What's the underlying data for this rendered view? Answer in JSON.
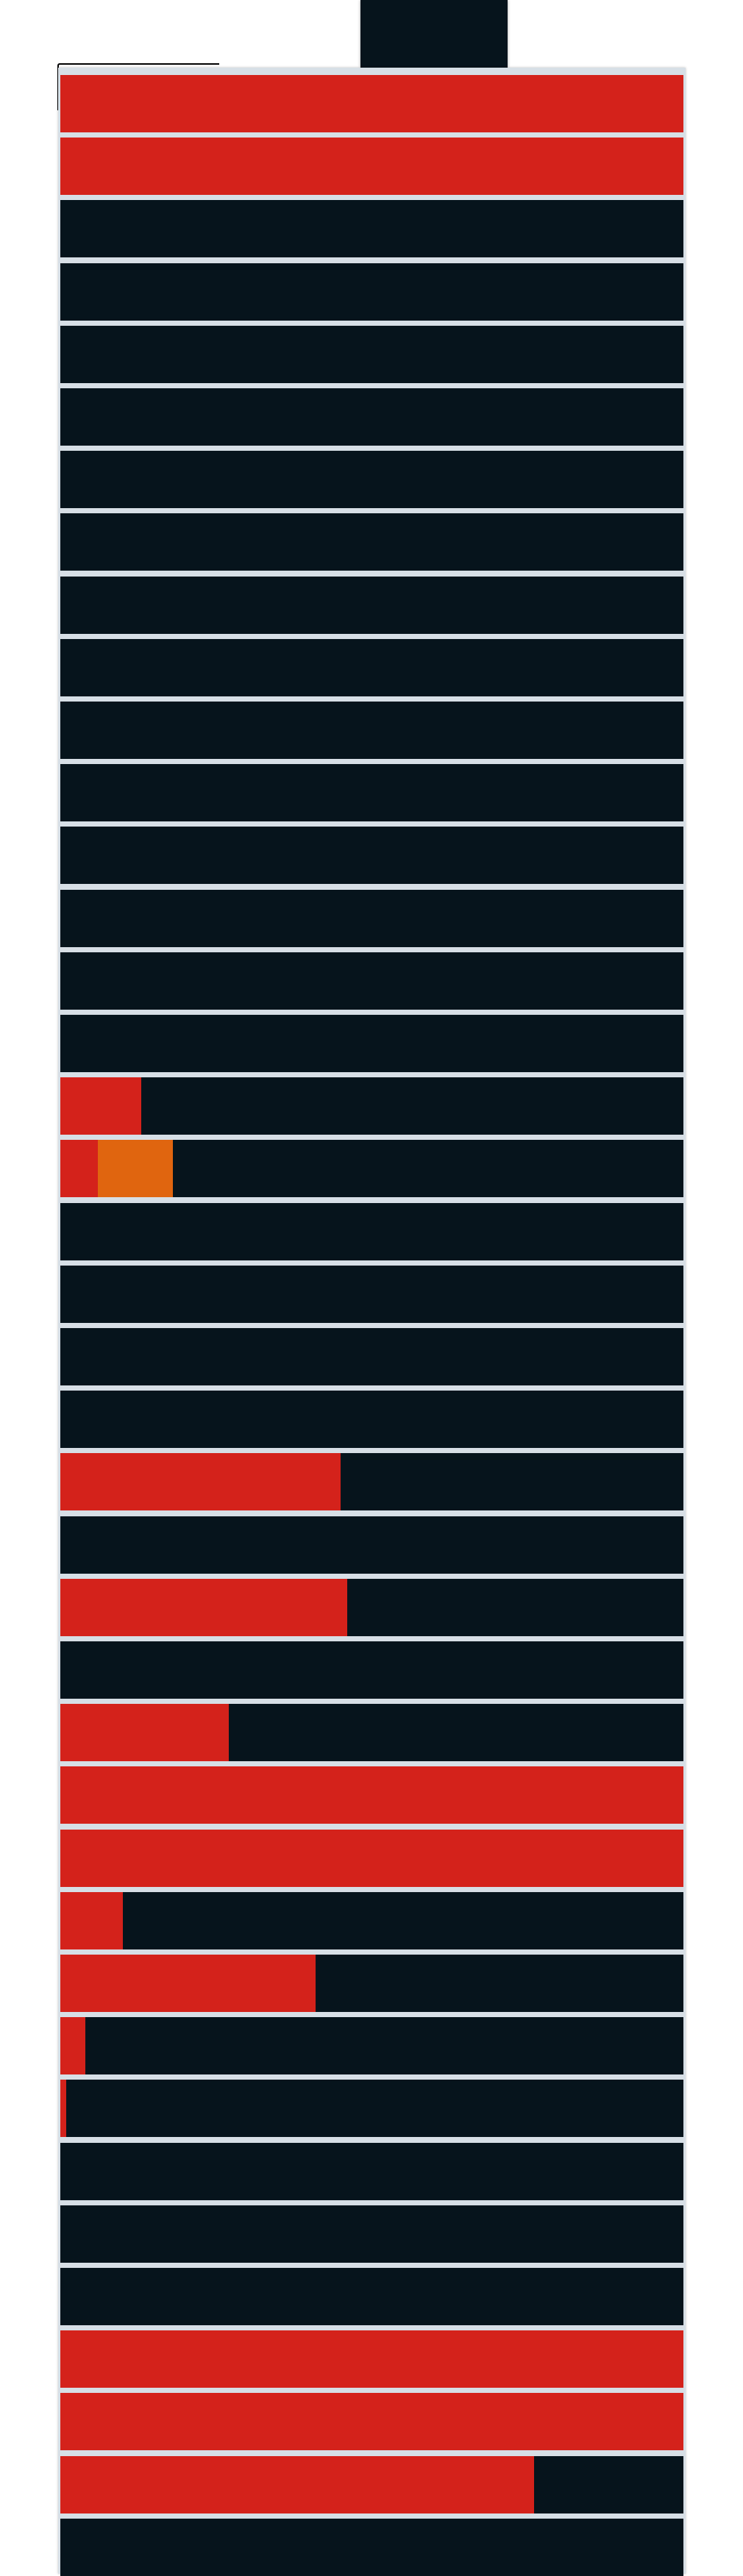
{
  "colors": {
    "background": "#ffffff",
    "track": "#06141c",
    "separator": "#d7dfe6",
    "red": "#d4221b",
    "orange": "#e0650f"
  },
  "rows": [
    {
      "segments": [
        {
          "color": "red",
          "fraction": 1.0
        }
      ]
    },
    {
      "segments": [
        {
          "color": "red",
          "fraction": 1.0
        }
      ]
    },
    {
      "segments": []
    },
    {
      "segments": []
    },
    {
      "segments": []
    },
    {
      "segments": []
    },
    {
      "segments": []
    },
    {
      "segments": []
    },
    {
      "segments": []
    },
    {
      "segments": []
    },
    {
      "segments": []
    },
    {
      "segments": []
    },
    {
      "segments": []
    },
    {
      "segments": []
    },
    {
      "segments": []
    },
    {
      "segments": []
    },
    {
      "segments": [
        {
          "color": "red",
          "fraction": 0.13
        }
      ]
    },
    {
      "segments": [
        {
          "color": "red",
          "fraction": 0.06
        },
        {
          "color": "orange",
          "fraction": 0.12
        }
      ]
    },
    {
      "segments": []
    },
    {
      "segments": []
    },
    {
      "segments": []
    },
    {
      "segments": []
    },
    {
      "segments": [
        {
          "color": "red",
          "fraction": 0.45
        }
      ]
    },
    {
      "segments": []
    },
    {
      "segments": [
        {
          "color": "red",
          "fraction": 0.46
        }
      ]
    },
    {
      "segments": []
    },
    {
      "segments": [
        {
          "color": "red",
          "fraction": 0.27
        }
      ]
    },
    {
      "segments": [
        {
          "color": "red",
          "fraction": 1.0
        }
      ]
    },
    {
      "segments": [
        {
          "color": "red",
          "fraction": 1.0
        }
      ]
    },
    {
      "segments": [
        {
          "color": "red",
          "fraction": 0.1
        }
      ]
    },
    {
      "segments": [
        {
          "color": "red",
          "fraction": 0.41
        }
      ]
    },
    {
      "segments": [
        {
          "color": "red",
          "fraction": 0.04
        }
      ]
    },
    {
      "segments": [
        {
          "color": "red",
          "fraction": 0.01
        }
      ]
    },
    {
      "segments": []
    },
    {
      "segments": []
    },
    {
      "segments": []
    },
    {
      "segments": [
        {
          "color": "red",
          "fraction": 1.0
        }
      ]
    },
    {
      "segments": [
        {
          "color": "red",
          "fraction": 1.0
        }
      ]
    },
    {
      "segments": [
        {
          "color": "red",
          "fraction": 0.76
        }
      ]
    },
    {
      "segments": []
    }
  ]
}
